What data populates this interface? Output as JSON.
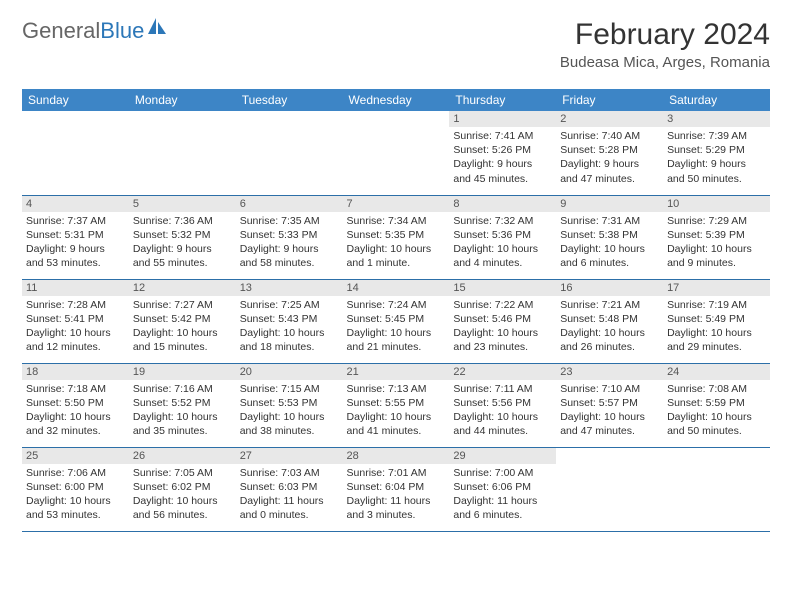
{
  "logo": {
    "text1": "General",
    "text2": "Blue"
  },
  "title": "February 2024",
  "location": "Budeasa Mica, Arges, Romania",
  "colors": {
    "header_bg": "#3d85c6",
    "header_text": "#ffffff",
    "daynum_bg": "#e8e8e8",
    "rule": "#2c6fa8",
    "logo_gray": "#666666",
    "logo_blue": "#2c77b8"
  },
  "dayHeaders": [
    "Sunday",
    "Monday",
    "Tuesday",
    "Wednesday",
    "Thursday",
    "Friday",
    "Saturday"
  ],
  "weeks": [
    [
      {
        "n": "",
        "sr": "",
        "ss": "",
        "dl": ""
      },
      {
        "n": "",
        "sr": "",
        "ss": "",
        "dl": ""
      },
      {
        "n": "",
        "sr": "",
        "ss": "",
        "dl": ""
      },
      {
        "n": "",
        "sr": "",
        "ss": "",
        "dl": ""
      },
      {
        "n": "1",
        "sr": "Sunrise: 7:41 AM",
        "ss": "Sunset: 5:26 PM",
        "dl": "Daylight: 9 hours and 45 minutes."
      },
      {
        "n": "2",
        "sr": "Sunrise: 7:40 AM",
        "ss": "Sunset: 5:28 PM",
        "dl": "Daylight: 9 hours and 47 minutes."
      },
      {
        "n": "3",
        "sr": "Sunrise: 7:39 AM",
        "ss": "Sunset: 5:29 PM",
        "dl": "Daylight: 9 hours and 50 minutes."
      }
    ],
    [
      {
        "n": "4",
        "sr": "Sunrise: 7:37 AM",
        "ss": "Sunset: 5:31 PM",
        "dl": "Daylight: 9 hours and 53 minutes."
      },
      {
        "n": "5",
        "sr": "Sunrise: 7:36 AM",
        "ss": "Sunset: 5:32 PM",
        "dl": "Daylight: 9 hours and 55 minutes."
      },
      {
        "n": "6",
        "sr": "Sunrise: 7:35 AM",
        "ss": "Sunset: 5:33 PM",
        "dl": "Daylight: 9 hours and 58 minutes."
      },
      {
        "n": "7",
        "sr": "Sunrise: 7:34 AM",
        "ss": "Sunset: 5:35 PM",
        "dl": "Daylight: 10 hours and 1 minute."
      },
      {
        "n": "8",
        "sr": "Sunrise: 7:32 AM",
        "ss": "Sunset: 5:36 PM",
        "dl": "Daylight: 10 hours and 4 minutes."
      },
      {
        "n": "9",
        "sr": "Sunrise: 7:31 AM",
        "ss": "Sunset: 5:38 PM",
        "dl": "Daylight: 10 hours and 6 minutes."
      },
      {
        "n": "10",
        "sr": "Sunrise: 7:29 AM",
        "ss": "Sunset: 5:39 PM",
        "dl": "Daylight: 10 hours and 9 minutes."
      }
    ],
    [
      {
        "n": "11",
        "sr": "Sunrise: 7:28 AM",
        "ss": "Sunset: 5:41 PM",
        "dl": "Daylight: 10 hours and 12 minutes."
      },
      {
        "n": "12",
        "sr": "Sunrise: 7:27 AM",
        "ss": "Sunset: 5:42 PM",
        "dl": "Daylight: 10 hours and 15 minutes."
      },
      {
        "n": "13",
        "sr": "Sunrise: 7:25 AM",
        "ss": "Sunset: 5:43 PM",
        "dl": "Daylight: 10 hours and 18 minutes."
      },
      {
        "n": "14",
        "sr": "Sunrise: 7:24 AM",
        "ss": "Sunset: 5:45 PM",
        "dl": "Daylight: 10 hours and 21 minutes."
      },
      {
        "n": "15",
        "sr": "Sunrise: 7:22 AM",
        "ss": "Sunset: 5:46 PM",
        "dl": "Daylight: 10 hours and 23 minutes."
      },
      {
        "n": "16",
        "sr": "Sunrise: 7:21 AM",
        "ss": "Sunset: 5:48 PM",
        "dl": "Daylight: 10 hours and 26 minutes."
      },
      {
        "n": "17",
        "sr": "Sunrise: 7:19 AM",
        "ss": "Sunset: 5:49 PM",
        "dl": "Daylight: 10 hours and 29 minutes."
      }
    ],
    [
      {
        "n": "18",
        "sr": "Sunrise: 7:18 AM",
        "ss": "Sunset: 5:50 PM",
        "dl": "Daylight: 10 hours and 32 minutes."
      },
      {
        "n": "19",
        "sr": "Sunrise: 7:16 AM",
        "ss": "Sunset: 5:52 PM",
        "dl": "Daylight: 10 hours and 35 minutes."
      },
      {
        "n": "20",
        "sr": "Sunrise: 7:15 AM",
        "ss": "Sunset: 5:53 PM",
        "dl": "Daylight: 10 hours and 38 minutes."
      },
      {
        "n": "21",
        "sr": "Sunrise: 7:13 AM",
        "ss": "Sunset: 5:55 PM",
        "dl": "Daylight: 10 hours and 41 minutes."
      },
      {
        "n": "22",
        "sr": "Sunrise: 7:11 AM",
        "ss": "Sunset: 5:56 PM",
        "dl": "Daylight: 10 hours and 44 minutes."
      },
      {
        "n": "23",
        "sr": "Sunrise: 7:10 AM",
        "ss": "Sunset: 5:57 PM",
        "dl": "Daylight: 10 hours and 47 minutes."
      },
      {
        "n": "24",
        "sr": "Sunrise: 7:08 AM",
        "ss": "Sunset: 5:59 PM",
        "dl": "Daylight: 10 hours and 50 minutes."
      }
    ],
    [
      {
        "n": "25",
        "sr": "Sunrise: 7:06 AM",
        "ss": "Sunset: 6:00 PM",
        "dl": "Daylight: 10 hours and 53 minutes."
      },
      {
        "n": "26",
        "sr": "Sunrise: 7:05 AM",
        "ss": "Sunset: 6:02 PM",
        "dl": "Daylight: 10 hours and 56 minutes."
      },
      {
        "n": "27",
        "sr": "Sunrise: 7:03 AM",
        "ss": "Sunset: 6:03 PM",
        "dl": "Daylight: 11 hours and 0 minutes."
      },
      {
        "n": "28",
        "sr": "Sunrise: 7:01 AM",
        "ss": "Sunset: 6:04 PM",
        "dl": "Daylight: 11 hours and 3 minutes."
      },
      {
        "n": "29",
        "sr": "Sunrise: 7:00 AM",
        "ss": "Sunset: 6:06 PM",
        "dl": "Daylight: 11 hours and 6 minutes."
      },
      {
        "n": "",
        "sr": "",
        "ss": "",
        "dl": ""
      },
      {
        "n": "",
        "sr": "",
        "ss": "",
        "dl": ""
      }
    ]
  ]
}
